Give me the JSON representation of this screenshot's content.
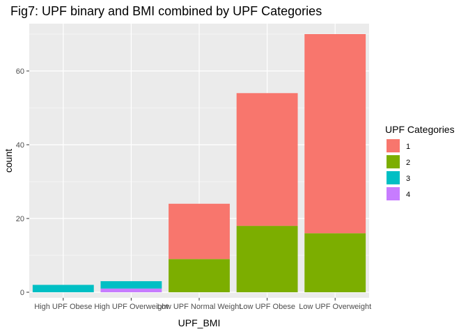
{
  "chart_data": {
    "type": "bar",
    "stacked": true,
    "title": "Fig7: UPF binary and BMI combined by UPF Categories",
    "xlabel": "UPF_BMI",
    "ylabel": "count",
    "categories": [
      "High UPF Obese",
      "High UPF Overweight",
      "Low UPF Normal Weight",
      "Low UPF Obese",
      "Low UPF Overweight"
    ],
    "yticks": [
      0,
      20,
      40,
      60
    ],
    "ylim": [
      0,
      73
    ],
    "grid": true,
    "legend": {
      "title": "UPF Categories",
      "placement": "right",
      "entries": [
        "1",
        "2",
        "3",
        "4"
      ]
    },
    "series": [
      {
        "name": "1",
        "color": "#F8766D",
        "values": [
          0,
          0,
          15,
          36,
          54
        ]
      },
      {
        "name": "2",
        "color": "#7CAE00",
        "values": [
          0,
          0,
          9,
          18,
          16
        ]
      },
      {
        "name": "3",
        "color": "#00BFC4",
        "values": [
          2,
          2,
          0,
          0,
          0
        ]
      },
      {
        "name": "4",
        "color": "#C77CFF",
        "values": [
          0,
          1,
          0,
          0,
          0
        ]
      }
    ],
    "panel_background": "#EBEBEB",
    "grid_color": "#FFFFFF"
  }
}
